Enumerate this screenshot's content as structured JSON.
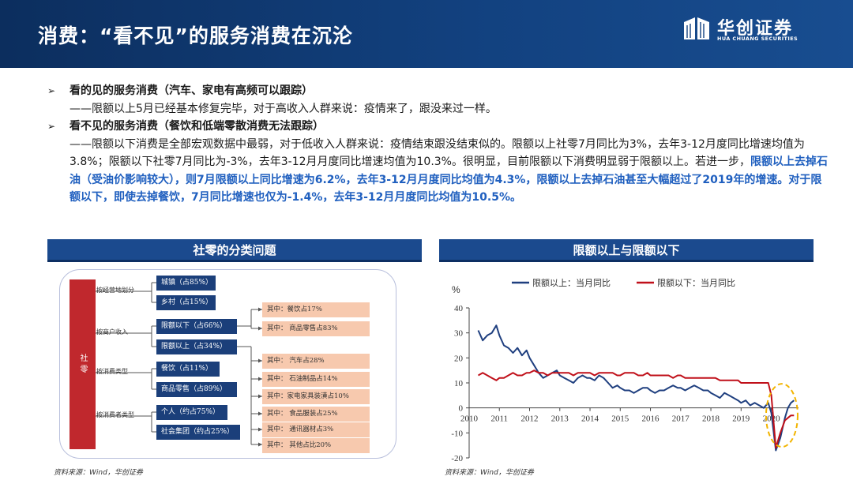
{
  "header": {
    "title": "消费：“看不见”的服务消费在沉沦",
    "logo_cn": "华创证券",
    "logo_en": "HUA CHUANG SECURITIES"
  },
  "bullets": {
    "arrow": "➢",
    "b1_head": "看的见的服务消费（汽车、家电有高频可以跟踪）",
    "b1_body": "——限额以上5月已经基本修复完毕，对于高收入人群来说：疫情来了，跟没来过一样。",
    "b2_head": "看不见的服务消费（餐饮和低端零散消费无法跟踪）",
    "b2_body_plain": "——限额以下消费是全部宏观数据中最弱，对于低收入人群来说：疫情结束跟没结束似的。限额以上社零7月同比为3%，去年3-12月度同比增速均值为3.8%；限额以下社零7月同比为-3%，去年3-12月月度同比增速均值为10.3%。很明显，目前限额以下消费明显弱于限额以上。若进一步，",
    "b2_body_highlight": "限额以上去掉石油（受油价影响较大），则7月限额以上同比增速为6.2%，去年3-12月月度同比均值为4.3%，限额以上去掉石油甚至大幅超过了2019年的增速。对于限额以下，即使去掉餐饮，7月同比增速也仅为-1.4%，去年3-12月月度同比均值为10.5%。"
  },
  "left_panel": {
    "title": "社零的分类问题",
    "root": "社零",
    "categories": [
      "按经营地划分",
      "按商户收入",
      "按消费类型",
      "按消费者类型"
    ],
    "boxes": [
      "城镇（占85%）",
      "乡村（占15%）",
      "限额以下（占66%）",
      "限额以上（占34%）",
      "餐饮（占11%）",
      "商品零售（占89%）",
      "个人（约占75%）",
      "社会集团（约占25%）"
    ],
    "sub_below": [
      "其中：餐饮占17%",
      "其中： 商品零售占83%"
    ],
    "sub_above": [
      "其中： 汽车占28%",
      "其中： 石油制品占14%",
      "其中：家电家具装潢占10%",
      "其中： 食品服装占25%",
      "其中： 通讯器材占3%",
      "其中： 其他占比20%"
    ],
    "source": "资料来源：Wind，华创证券"
  },
  "right_panel": {
    "title": "限额以上与限额以下",
    "source": "资料来源：Wind，华创证券"
  },
  "chart_data": {
    "type": "line",
    "title": "",
    "ylabel": "%",
    "xlabel": "",
    "ylim": [
      -20,
      40
    ],
    "yticks": [
      -20,
      -10,
      0,
      10,
      20,
      30,
      40
    ],
    "xlim": [
      2010,
      2020.9
    ],
    "xticks": [
      "2010",
      "2011",
      "2012",
      "2013",
      "2014",
      "2015",
      "2016",
      "2017",
      "2018",
      "2019",
      "2020"
    ],
    "legend": "top",
    "series": [
      {
        "name": "限额以上：当月同比",
        "color": "#1f3f7f",
        "points": [
          [
            2010.3,
            31
          ],
          [
            2010.45,
            27
          ],
          [
            2010.6,
            29
          ],
          [
            2010.75,
            30
          ],
          [
            2010.9,
            33
          ],
          [
            2011.0,
            29
          ],
          [
            2011.15,
            25
          ],
          [
            2011.3,
            24
          ],
          [
            2011.45,
            22
          ],
          [
            2011.6,
            24
          ],
          [
            2011.75,
            21
          ],
          [
            2011.9,
            23
          ],
          [
            2012.0,
            20
          ],
          [
            2012.15,
            17
          ],
          [
            2012.3,
            14
          ],
          [
            2012.45,
            12
          ],
          [
            2012.6,
            13
          ],
          [
            2012.75,
            14
          ],
          [
            2012.9,
            15
          ],
          [
            2013.0,
            13
          ],
          [
            2013.15,
            12
          ],
          [
            2013.3,
            11
          ],
          [
            2013.45,
            10
          ],
          [
            2013.6,
            12
          ],
          [
            2013.75,
            13
          ],
          [
            2013.9,
            12
          ],
          [
            2014.0,
            12
          ],
          [
            2014.15,
            11
          ],
          [
            2014.3,
            13
          ],
          [
            2014.45,
            12
          ],
          [
            2014.6,
            10
          ],
          [
            2014.75,
            8
          ],
          [
            2014.9,
            9
          ],
          [
            2015.0,
            8
          ],
          [
            2015.15,
            7
          ],
          [
            2015.3,
            7
          ],
          [
            2015.45,
            6
          ],
          [
            2015.6,
            7
          ],
          [
            2015.75,
            8
          ],
          [
            2015.9,
            8
          ],
          [
            2016.0,
            7
          ],
          [
            2016.15,
            6
          ],
          [
            2016.3,
            7
          ],
          [
            2016.45,
            7
          ],
          [
            2016.6,
            8
          ],
          [
            2016.75,
            9
          ],
          [
            2016.9,
            8
          ],
          [
            2017.0,
            8
          ],
          [
            2017.15,
            7
          ],
          [
            2017.3,
            8
          ],
          [
            2017.45,
            9
          ],
          [
            2017.6,
            8
          ],
          [
            2017.75,
            7
          ],
          [
            2017.9,
            7
          ],
          [
            2018.0,
            6
          ],
          [
            2018.15,
            5
          ],
          [
            2018.3,
            4
          ],
          [
            2018.45,
            6
          ],
          [
            2018.6,
            5
          ],
          [
            2018.75,
            4
          ],
          [
            2018.9,
            3
          ],
          [
            2019.0,
            2
          ],
          [
            2019.15,
            3
          ],
          [
            2019.3,
            1
          ],
          [
            2019.45,
            2
          ],
          [
            2019.6,
            1
          ],
          [
            2019.75,
            0
          ],
          [
            2019.9,
            2
          ],
          [
            2020.0,
            -2
          ],
          [
            2020.15,
            -17
          ],
          [
            2020.3,
            -12
          ],
          [
            2020.45,
            -4
          ],
          [
            2020.55,
            0
          ],
          [
            2020.65,
            2
          ],
          [
            2020.75,
            3
          ]
        ]
      },
      {
        "name": "限额以下：当月同比",
        "color": "#c0101a",
        "points": [
          [
            2010.3,
            13
          ],
          [
            2010.45,
            14
          ],
          [
            2010.6,
            13
          ],
          [
            2010.75,
            12
          ],
          [
            2010.9,
            11
          ],
          [
            2011.0,
            12
          ],
          [
            2011.15,
            12
          ],
          [
            2011.3,
            13
          ],
          [
            2011.45,
            14
          ],
          [
            2011.6,
            13
          ],
          [
            2011.75,
            13
          ],
          [
            2011.9,
            14
          ],
          [
            2012.0,
            14
          ],
          [
            2012.15,
            15
          ],
          [
            2012.3,
            14
          ],
          [
            2012.45,
            14
          ],
          [
            2012.6,
            13
          ],
          [
            2012.75,
            14
          ],
          [
            2012.9,
            14
          ],
          [
            2013.0,
            14
          ],
          [
            2013.15,
            14
          ],
          [
            2013.3,
            14
          ],
          [
            2013.45,
            13
          ],
          [
            2013.6,
            14
          ],
          [
            2013.75,
            14
          ],
          [
            2013.9,
            14
          ],
          [
            2014.0,
            14
          ],
          [
            2014.15,
            13
          ],
          [
            2014.3,
            14
          ],
          [
            2014.45,
            14
          ],
          [
            2014.6,
            14
          ],
          [
            2014.75,
            14
          ],
          [
            2014.9,
            13
          ],
          [
            2015.0,
            13
          ],
          [
            2015.15,
            14
          ],
          [
            2015.3,
            14
          ],
          [
            2015.45,
            14
          ],
          [
            2015.6,
            13
          ],
          [
            2015.75,
            13
          ],
          [
            2015.9,
            14
          ],
          [
            2016.0,
            13
          ],
          [
            2016.15,
            13
          ],
          [
            2016.3,
            13
          ],
          [
            2016.45,
            13
          ],
          [
            2016.6,
            13
          ],
          [
            2016.75,
            12
          ],
          [
            2016.9,
            13
          ],
          [
            2017.0,
            13
          ],
          [
            2017.15,
            12
          ],
          [
            2017.3,
            12
          ],
          [
            2017.45,
            12
          ],
          [
            2017.6,
            12
          ],
          [
            2017.75,
            12
          ],
          [
            2017.9,
            12
          ],
          [
            2018.0,
            12
          ],
          [
            2018.15,
            12
          ],
          [
            2018.3,
            11
          ],
          [
            2018.45,
            11
          ],
          [
            2018.6,
            11
          ],
          [
            2018.75,
            11
          ],
          [
            2018.9,
            11
          ],
          [
            2019.0,
            10
          ],
          [
            2019.15,
            10
          ],
          [
            2019.3,
            10
          ],
          [
            2019.45,
            10
          ],
          [
            2019.6,
            10
          ],
          [
            2019.75,
            10
          ],
          [
            2019.9,
            10
          ],
          [
            2020.0,
            5
          ],
          [
            2020.15,
            -16
          ],
          [
            2020.3,
            -10
          ],
          [
            2020.45,
            -5
          ],
          [
            2020.55,
            -4
          ],
          [
            2020.65,
            -3
          ],
          [
            2020.75,
            -3
          ]
        ]
      }
    ]
  }
}
